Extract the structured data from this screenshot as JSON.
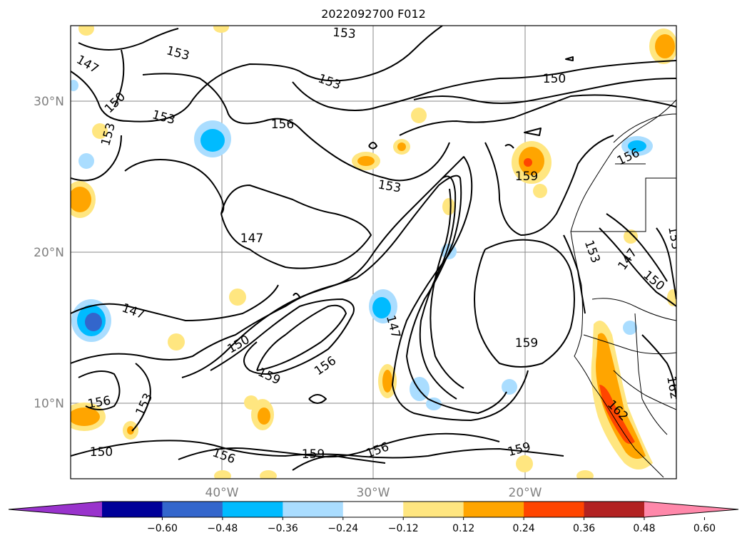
{
  "title": "2022092700 F012",
  "lat_labels": [
    "30°N",
    "20°N",
    "10°N"
  ],
  "lon_labels": [
    "40°W",
    "30°W",
    "20°W"
  ],
  "contour_labels": [
    "153",
    "153",
    "147",
    "150",
    "153",
    "153",
    "156",
    "150",
    "153",
    "159",
    "156",
    "153",
    "147",
    "153",
    "147",
    "150",
    "153",
    "147",
    "147",
    "150",
    "159",
    "156",
    "159",
    "156",
    "153",
    "162",
    "162",
    "150",
    "156",
    "159",
    "156",
    "159"
  ],
  "colorbar": {
    "colors": [
      "#9933cc",
      "#000099",
      "#3366cc",
      "#00bbff",
      "#aaddff",
      "#ffffff",
      "#ffe680",
      "#ffa500",
      "#ff4500",
      "#b22222",
      "#ff88aa"
    ],
    "tick_labels": [
      "−0.60",
      "−0.48",
      "−0.36",
      "−0.24",
      "−0.12",
      "0.12",
      "0.24",
      "0.36",
      "0.48",
      "0.60"
    ]
  }
}
